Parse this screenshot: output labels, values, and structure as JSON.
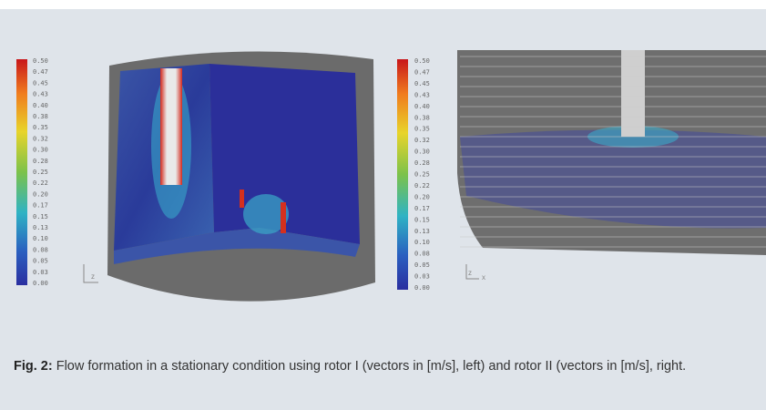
{
  "figure": {
    "left_colorbar": {
      "labels": [
        "0.50",
        "0.47",
        "0.45",
        "0.43",
        "0.40",
        "0.38",
        "0.35",
        "0.32",
        "0.30",
        "0.28",
        "0.25",
        "0.22",
        "0.20",
        "0.17",
        "0.15",
        "0.13",
        "0.10",
        "0.08",
        "0.05",
        "0.03",
        "0.00"
      ]
    },
    "right_colorbar": {
      "labels": [
        "0.50",
        "0.47",
        "0.45",
        "0.43",
        "0.40",
        "0.38",
        "0.35",
        "0.32",
        "0.30",
        "0.28",
        "0.25",
        "0.22",
        "0.20",
        "0.17",
        "0.15",
        "0.13",
        "0.10",
        "0.08",
        "0.05",
        "0.03",
        "0.00"
      ]
    },
    "left_axes": {
      "z": "z"
    },
    "right_axes": {
      "z": "z",
      "x": "x"
    }
  },
  "caption": {
    "label": "Fig. 2:",
    "text": " Flow formation in a stationary condition using rotor I (vectors in [m/s], left) and rotor II (vectors in [m/s], right."
  }
}
